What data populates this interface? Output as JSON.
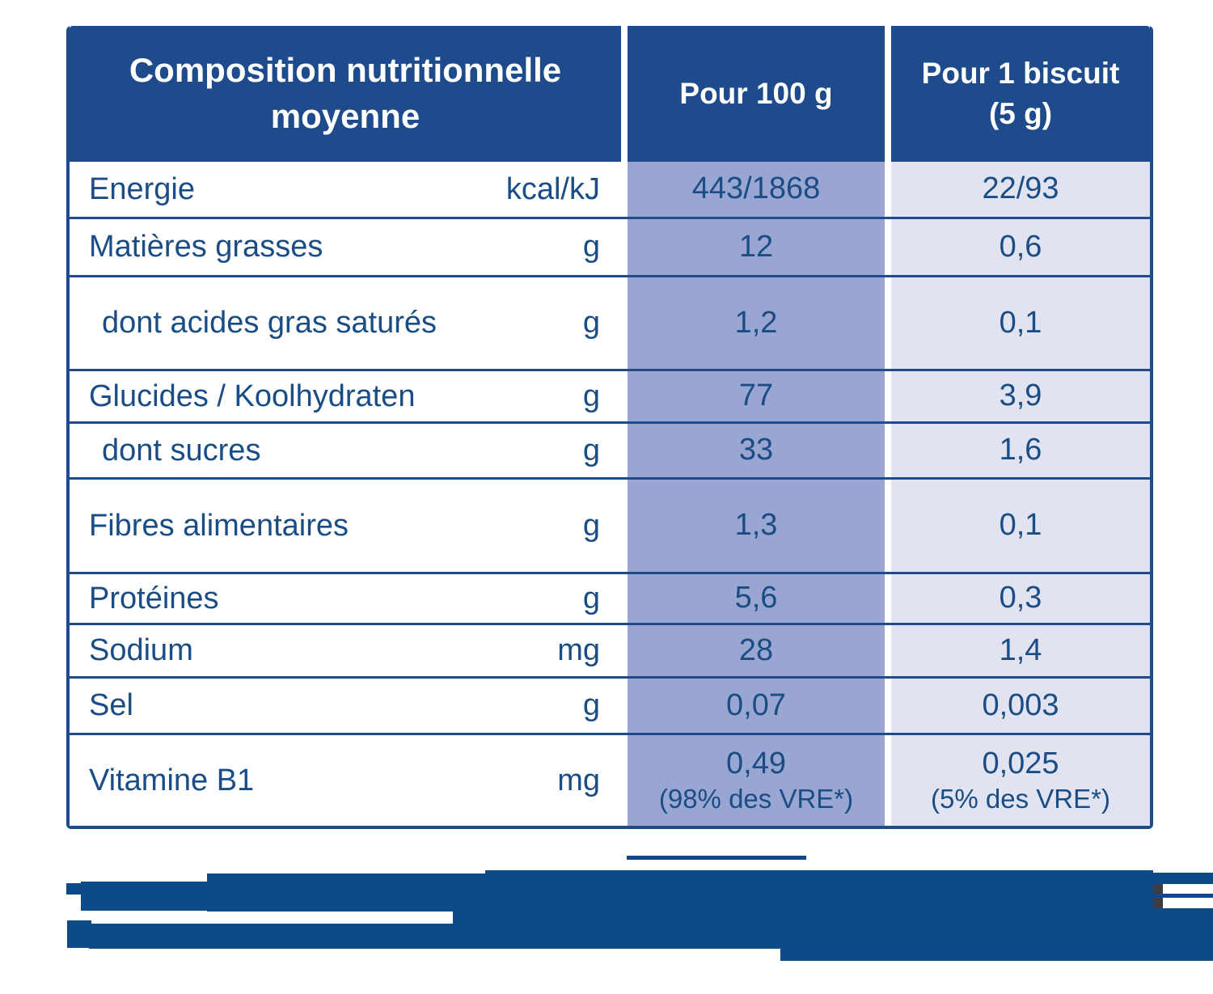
{
  "colors": {
    "header_bg": "#1d4b8c",
    "text_navy": "#1a4c85",
    "col_100g_bg": "#9aa6d2",
    "col_biscuit_bg": "#e1e4f0",
    "divider": "#1d4b8c",
    "redaction_blue": "#0e4a87"
  },
  "table": {
    "header": {
      "composition": "Composition nutritionnelle\nmoyenne",
      "per_100g": "Pour 100 g",
      "per_biscuit": "Pour 1 biscuit\n(5 g)"
    },
    "rows": [
      {
        "id": "energie",
        "label": "Energie",
        "unit": "kcal/kJ",
        "per_100g": "443/1868",
        "per_biscuit": "22/93",
        "indent": false
      },
      {
        "id": "matieres-grasses",
        "label": "Matières grasses",
        "unit": "g",
        "per_100g": "12",
        "per_biscuit": "0,6",
        "indent": false
      },
      {
        "id": "acides-gras-satures",
        "label": "dont acides gras saturés",
        "unit": "g",
        "per_100g": "1,2",
        "per_biscuit": "0,1",
        "indent": true
      },
      {
        "id": "glucides",
        "label": "Glucides / Koolhydraten",
        "unit": "g",
        "per_100g": "77",
        "per_biscuit": "3,9",
        "indent": false
      },
      {
        "id": "sucres",
        "label": "dont sucres",
        "unit": "g",
        "per_100g": "33",
        "per_biscuit": "1,6",
        "indent": true
      },
      {
        "id": "fibres",
        "label": "Fibres alimentaires",
        "unit": "g",
        "per_100g": "1,3",
        "per_biscuit": "0,1",
        "indent": false
      },
      {
        "id": "proteines",
        "label": "Protéines",
        "unit": "g",
        "per_100g": "5,6",
        "per_biscuit": "0,3",
        "indent": false
      },
      {
        "id": "sodium",
        "label": "Sodium",
        "unit": "mg",
        "per_100g": "28",
        "per_biscuit": "1,4",
        "indent": false
      },
      {
        "id": "sel",
        "label": "Sel",
        "unit": "g",
        "per_100g": "0,07",
        "per_biscuit": "0,003",
        "indent": false
      },
      {
        "id": "vitamine-b1",
        "label": "Vitamine B1",
        "unit": "mg",
        "per_100g": {
          "value": "0,49",
          "note": "(98% des VRE*)"
        },
        "per_biscuit": {
          "value": "0,025",
          "note": "(5% des VRE*)"
        },
        "indent": false
      }
    ],
    "footnote": {
      "redacted": true
    }
  }
}
